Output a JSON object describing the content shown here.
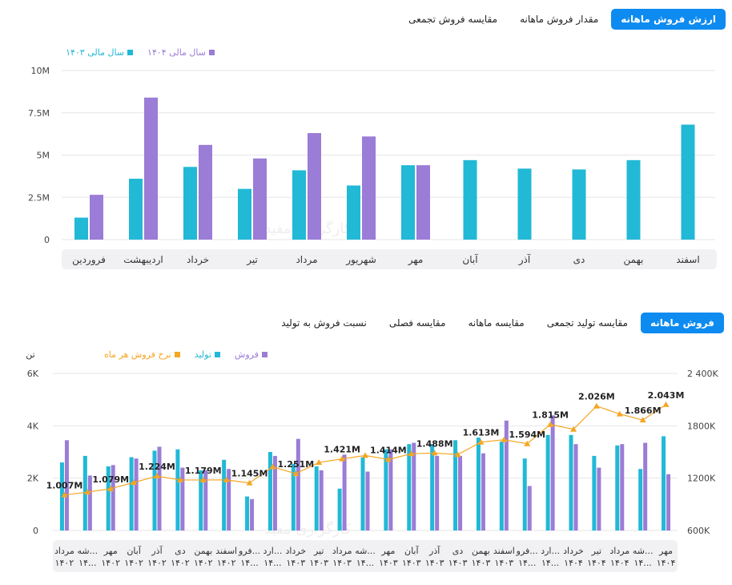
{
  "top_tabs": [
    "ارزش فروش ماهانه",
    "مقدار فروش ماهانه",
    "مقایسه فروش تجمعی"
  ],
  "bottom_tabs": [
    "فروش ماهانه",
    "مقایسه تولید تجمعی",
    "مقایسه ماهانه",
    "مقایسه فصلی",
    "نسبت فروش به تولید"
  ],
  "watermark": "کارگزاری مفید",
  "colors": {
    "cyan": "#21b9d6",
    "purple": "#9b7cd6",
    "orange": "#f5a623",
    "accent": "#0d8bf0"
  },
  "chart_data": [
    {
      "type": "bar",
      "categories": [
        "فروردین",
        "اردیبهشت",
        "خرداد",
        "تیر",
        "مرداد",
        "شهریور",
        "مهر",
        "آبان",
        "آذر",
        "دی",
        "بهمن",
        "اسفند"
      ],
      "series": [
        {
          "name": "سال مالی ۱۴۰۳",
          "color": "#21b9d6",
          "values": [
            1.3,
            3.6,
            4.3,
            3.0,
            4.1,
            3.2,
            4.4,
            4.7,
            4.2,
            4.15,
            4.7,
            6.8
          ]
        },
        {
          "name": "سال مالی ۱۴۰۴",
          "color": "#9b7cd6",
          "values": [
            2.65,
            8.4,
            5.6,
            4.8,
            6.3,
            6.1,
            4.4,
            null,
            null,
            null,
            null,
            null
          ]
        }
      ],
      "yticks": [
        "0",
        "2.5M",
        "5M",
        "7.5M",
        "10M"
      ],
      "ylim": [
        0,
        12.5
      ],
      "legend": "top-left"
    },
    {
      "type": "bar+line",
      "left_unit": "تن",
      "categories": [
        [
          "مرداد",
          "۱۴۰۲"
        ],
        [
          "شه...",
          "۱۴..."
        ],
        [
          "مهر",
          "۱۴۰۲"
        ],
        [
          "آبان",
          "۱۴۰۲"
        ],
        [
          "آذر",
          "۱۴۰۲"
        ],
        [
          "دی",
          "۱۴۰۲"
        ],
        [
          "بهمن",
          "۱۴۰۲"
        ],
        [
          "اسفند",
          "۱۴۰۲"
        ],
        [
          "فرو...",
          "۱۴..."
        ],
        [
          "ارد...",
          "۱۴..."
        ],
        [
          "خرداد",
          "۱۴۰۳"
        ],
        [
          "تیر",
          "۱۴۰۳"
        ],
        [
          "مرداد",
          "۱۴۰۳"
        ],
        [
          "شه...",
          "۱۴..."
        ],
        [
          "مهر",
          "۱۴۰۳"
        ],
        [
          "آبان",
          "۱۴۰۳"
        ],
        [
          "آذر",
          "۱۴۰۳"
        ],
        [
          "دی",
          "۱۴۰۳"
        ],
        [
          "بهمن",
          "۱۴۰۳"
        ],
        [
          "اسفند",
          "۱۴۰۳"
        ],
        [
          "فرو...",
          "۱۴..."
        ],
        [
          "ارد...",
          "۱۴..."
        ],
        [
          "خرداد",
          "۱۴۰۴"
        ],
        [
          "تیر",
          "۱۴۰۴"
        ],
        [
          "مرداد",
          "۱۴۰۴"
        ],
        [
          "شه...",
          "۱۴..."
        ],
        [
          "مهر",
          "۱۴۰۴"
        ]
      ],
      "series": [
        {
          "name": "فروش",
          "color": "#9b7cd6",
          "axis": "left",
          "values": [
            3450,
            2100,
            2500,
            2750,
            3200,
            2400,
            2300,
            2350,
            1200,
            2850,
            3500,
            2300,
            2900,
            2250,
            3100,
            3350,
            2850,
            2850,
            2950,
            4200,
            1700,
            4400,
            3300,
            2400,
            3300,
            3350,
            2150
          ]
        },
        {
          "name": "تولید",
          "color": "#21b9d6",
          "axis": "left",
          "values": [
            2600,
            2850,
            2450,
            2800,
            3050,
            3100,
            2300,
            2700,
            1300,
            3000,
            2550,
            2450,
            1600,
            2800,
            3100,
            3300,
            3300,
            3450,
            3550,
            3400,
            2750,
            3650,
            3650,
            2850,
            3250,
            2350,
            3600
          ]
        },
        {
          "name": "نرخ فروش هر ماه",
          "color": "#f5a623",
          "axis": "right",
          "values": [
            1007,
            1040,
            1079,
            1150,
            1224,
            1180,
            1179,
            1180,
            1145,
            1330,
            1251,
            1380,
            1421,
            1460,
            1414,
            1480,
            1488,
            1470,
            1613,
            1640,
            1594,
            1815,
            1760,
            2026,
            1935,
            1866,
            2043
          ]
        }
      ],
      "point_labels": [
        {
          "i": 0,
          "text": "1.007M"
        },
        {
          "i": 2,
          "text": "1.079M"
        },
        {
          "i": 4,
          "text": "1.224M"
        },
        {
          "i": 6,
          "text": "1.179M"
        },
        {
          "i": 8,
          "text": "1.145M"
        },
        {
          "i": 10,
          "text": "1.251M"
        },
        {
          "i": 12,
          "text": "1.421M"
        },
        {
          "i": 14,
          "text": "1.414M"
        },
        {
          "i": 16,
          "text": "1.488M"
        },
        {
          "i": 18,
          "text": "1.613M"
        },
        {
          "i": 20,
          "text": "1.594M"
        },
        {
          "i": 21,
          "text": "1.815M"
        },
        {
          "i": 23,
          "text": "2.026M"
        },
        {
          "i": 25,
          "text": "1.866M"
        },
        {
          "i": 26,
          "text": "2.043M"
        }
      ],
      "left_ticks": [
        "0",
        "2K",
        "4K",
        "6K"
      ],
      "left_lim": [
        0,
        6000
      ],
      "right_ticks": [
        "600K",
        "1200K",
        "1800K",
        "2 400K"
      ],
      "right_lim": [
        600,
        2400
      ],
      "legend": "top-left"
    }
  ]
}
